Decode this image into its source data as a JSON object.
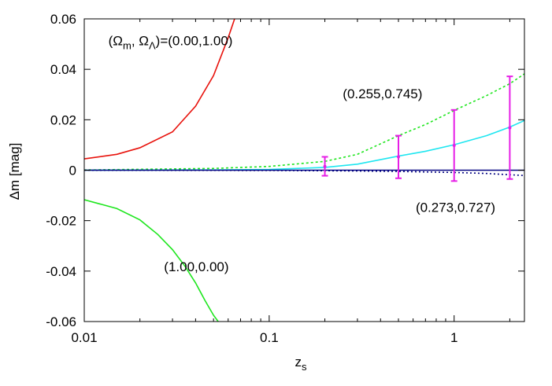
{
  "chart_data": {
    "type": "line",
    "title": "",
    "xlabel": "z",
    "xlabel_subscript": "s",
    "ylabel": "Δm [mag]",
    "xscale": "log",
    "xlim": [
      0.01,
      2.4
    ],
    "ylim": [
      -0.06,
      0.06
    ],
    "grid": false,
    "legend": "none",
    "x_ticks": [
      {
        "value": 0.01,
        "label": "0.01"
      },
      {
        "value": 0.1,
        "label": "0.1"
      },
      {
        "value": 1,
        "label": "1"
      }
    ],
    "y_ticks": [
      {
        "value": -0.06,
        "label": "-0.06"
      },
      {
        "value": -0.04,
        "label": "-0.04"
      },
      {
        "value": -0.02,
        "label": "-0.02"
      },
      {
        "value": 0,
        "label": "0"
      },
      {
        "value": 0.02,
        "label": "0.02"
      },
      {
        "value": 0.04,
        "label": "0.04"
      },
      {
        "value": 0.06,
        "label": "0.06"
      }
    ],
    "annotations": [
      {
        "name": "annotation-omega-1",
        "parts": [
          "(Ω",
          "m",
          ", Ω",
          "Λ",
          ")=(0.00,1.00)"
        ],
        "x": 0.0135,
        "y": 0.0495
      },
      {
        "name": "annotation-omega-2",
        "parts": [
          "(0.255,0.745)"
        ],
        "x": 0.25,
        "y": 0.0285
      },
      {
        "name": "annotation-omega-3",
        "parts": [
          "(0.273,0.727)"
        ],
        "x": 0.62,
        "y": -0.0165
      },
      {
        "name": "annotation-omega-4",
        "parts": [
          "(1.00,0.00)"
        ],
        "x": 0.027,
        "y": -0.04
      }
    ],
    "series": [
      {
        "color": "#e8120c",
        "dash": "",
        "x": [
          0.01,
          0.015,
          0.02,
          0.03,
          0.04,
          0.05,
          0.06,
          0.065
        ],
        "y": [
          0.0045,
          0.0063,
          0.0089,
          0.0152,
          0.0254,
          0.0375,
          0.0525,
          0.06
        ]
      },
      {
        "color": "#1ee61e",
        "dash": "",
        "x": [
          0.01,
          0.015,
          0.02,
          0.025,
          0.03,
          0.035,
          0.04,
          0.045,
          0.05,
          0.053
        ],
        "y": [
          -0.0117,
          -0.0152,
          -0.0197,
          -0.0255,
          -0.0315,
          -0.038,
          -0.0447,
          -0.0517,
          -0.0575,
          -0.06
        ]
      },
      {
        "color": "#1ee61e",
        "dash": "3,3",
        "x": [
          0.01,
          0.05,
          0.1,
          0.2,
          0.3,
          0.5,
          0.7,
          1,
          1.5,
          2,
          2.4
        ],
        "y": [
          0.0001,
          0.0007,
          0.0015,
          0.0035,
          0.0063,
          0.0137,
          0.0181,
          0.0237,
          0.0296,
          0.0343,
          0.0382
        ]
      },
      {
        "color": "#1ee6f0",
        "dash": "",
        "x": [
          0.01,
          0.05,
          0.1,
          0.2,
          0.3,
          0.5,
          0.7,
          1,
          1.5,
          2,
          2.4
        ],
        "y": [
          0,
          0.0001,
          0.0003,
          0.0011,
          0.0024,
          0.0056,
          0.0075,
          0.0101,
          0.0137,
          0.0171,
          0.0197
        ]
      },
      {
        "color": "#000080",
        "dash": "",
        "x": [
          0.01,
          2.4
        ],
        "y": [
          0,
          0
        ]
      },
      {
        "color": "#000080",
        "dash": "2,3",
        "x": [
          0.01,
          0.1,
          0.3,
          0.5,
          1,
          1.5,
          2,
          2.4
        ],
        "y": [
          0,
          -0.0001,
          -0.0003,
          -0.0005,
          -0.0009,
          -0.0013,
          -0.0018,
          -0.0021
        ]
      }
    ],
    "error_bars": {
      "color": "#e61ee6",
      "points": [
        {
          "x": 0.2,
          "y": 0.0015,
          "low": -0.0022,
          "high": 0.0053
        },
        {
          "x": 0.5,
          "y": 0.0053,
          "low": -0.0032,
          "high": 0.0137
        },
        {
          "x": 1,
          "y": 0.0098,
          "low": -0.0043,
          "high": 0.0239
        },
        {
          "x": 2,
          "y": 0.0168,
          "low": -0.0035,
          "high": 0.0372
        }
      ]
    }
  }
}
